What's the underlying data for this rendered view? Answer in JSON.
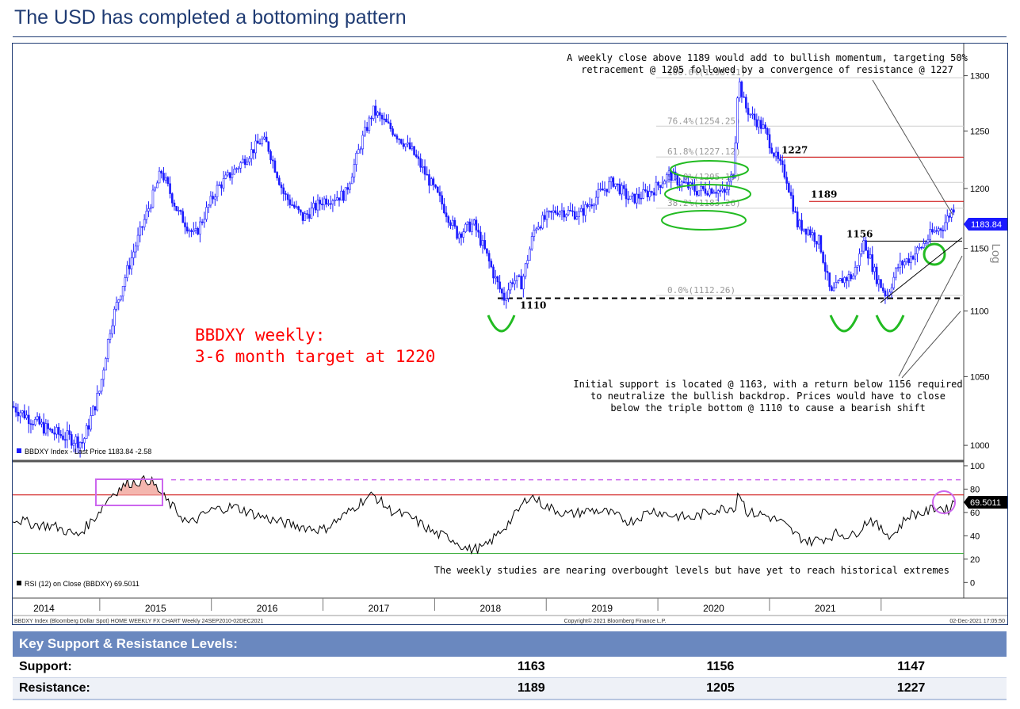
{
  "title": "The USD has completed a bottoming pattern",
  "colors": {
    "title": "#1f3b73",
    "candle": "#1a1aff",
    "resistance": "#cc0000",
    "target_text": "#ff0000",
    "ellipse": "#22bb22",
    "rsi_box": "#cc66ee",
    "table_header": "#6a88bf"
  },
  "chart_data": [
    {
      "type": "candlestick",
      "ylim": [
        990,
        1330
      ],
      "y_scale": "log",
      "axis_side_label": "Log",
      "y_ticks": [
        "1000",
        "1050",
        "1100",
        "1150",
        "1200",
        "1250",
        "1300"
      ],
      "x_labels": [
        "2014",
        "2015",
        "2016",
        "2017",
        "2018",
        "2019",
        "2020",
        "2021"
      ],
      "legend": "BBDXY Index - Last Price 1183.84  -2.58",
      "last_price": "1183.84",
      "path": [
        [
          2013.72,
          1028
        ],
        [
          2013.9,
          1018
        ],
        [
          2014.05,
          1010
        ],
        [
          2014.35,
          1002
        ],
        [
          2014.5,
          1040
        ],
        [
          2014.6,
          1090
        ],
        [
          2014.72,
          1125
        ],
        [
          2014.85,
          1160
        ],
        [
          2015.0,
          1200
        ],
        [
          2015.05,
          1215
        ],
        [
          2015.2,
          1180
        ],
        [
          2015.35,
          1160
        ],
        [
          2015.55,
          1200
        ],
        [
          2015.75,
          1220
        ],
        [
          2015.95,
          1242
        ],
        [
          2016.0,
          1238
        ],
        [
          2016.15,
          1195
        ],
        [
          2016.32,
          1175
        ],
        [
          2016.5,
          1190
        ],
        [
          2016.7,
          1195
        ],
        [
          2016.85,
          1242
        ],
        [
          2016.95,
          1268
        ],
        [
          2017.05,
          1258
        ],
        [
          2017.3,
          1232
        ],
        [
          2017.55,
          1190
        ],
        [
          2017.7,
          1162
        ],
        [
          2017.85,
          1170
        ],
        [
          2017.95,
          1148
        ],
        [
          2018.05,
          1124
        ],
        [
          2018.12,
          1110
        ],
        [
          2018.2,
          1125
        ],
        [
          2018.28,
          1122
        ],
        [
          2018.4,
          1168
        ],
        [
          2018.6,
          1182
        ],
        [
          2018.8,
          1178
        ],
        [
          2019.0,
          1198
        ],
        [
          2019.1,
          1206
        ],
        [
          2019.25,
          1190
        ],
        [
          2019.45,
          1198
        ],
        [
          2019.6,
          1212
        ],
        [
          2019.7,
          1205
        ],
        [
          2019.85,
          1198
        ],
        [
          2020.0,
          1200
        ],
        [
          2020.1,
          1195
        ],
        [
          2020.18,
          1215
        ],
        [
          2020.22,
          1298
        ],
        [
          2020.28,
          1272
        ],
        [
          2020.35,
          1262
        ],
        [
          2020.45,
          1252
        ],
        [
          2020.55,
          1228
        ],
        [
          2020.65,
          1210
        ],
        [
          2020.75,
          1170
        ],
        [
          2020.85,
          1165
        ],
        [
          2020.95,
          1155
        ],
        [
          2021.05,
          1112
        ],
        [
          2021.15,
          1125
        ],
        [
          2021.25,
          1128
        ],
        [
          2021.35,
          1156
        ],
        [
          2021.45,
          1128
        ],
        [
          2021.55,
          1112
        ],
        [
          2021.65,
          1135
        ],
        [
          2021.75,
          1142
        ],
        [
          2021.85,
          1150
        ],
        [
          2021.95,
          1162
        ],
        [
          2022.05,
          1168
        ],
        [
          2022.15,
          1184
        ]
      ],
      "fib_levels": [
        {
          "label": "100.0%(1298.11)",
          "value": 1298.11
        },
        {
          "label": "76.4%(1254.25)",
          "value": 1254.25
        },
        {
          "label": "61.8%(1227.12)",
          "value": 1227.12
        },
        {
          "label": "50.0%(1205.19)",
          "value": 1205.19
        },
        {
          "label": "38.2%(1183.26)",
          "value": 1183.26
        },
        {
          "label": "0.0%(1112.26)",
          "value": 1112.26
        }
      ],
      "levels": [
        {
          "label": "1227",
          "value": 1227,
          "style": "resistance"
        },
        {
          "label": "1189",
          "value": 1189,
          "style": "resistance"
        },
        {
          "label": "1156",
          "value": 1156,
          "style": "support"
        },
        {
          "label": "1110",
          "value": 1110,
          "style": "triple-bottom"
        }
      ],
      "annotations": {
        "top_note": [
          "A weekly close above 1189 would add to bullish momentum, targeting 50%",
          "retracement @ 1205 followed by a convergence of resistance @ 1227"
        ],
        "target": [
          "BBDXY weekly:",
          "3-6 month target at 1220"
        ],
        "support_note": [
          "Initial support is located @ 1163, with a return below 1156 required",
          "to neutralize the bullish backdrop. Prices would have to close",
          "below the triple bottom @ 1110 to cause a bearish shift"
        ]
      }
    },
    {
      "type": "line",
      "name": "RSI (12)",
      "ylim": [
        -12,
        102
      ],
      "y_ticks": [
        "0",
        "20",
        "40",
        "60",
        "80",
        "100"
      ],
      "reference_lines": [
        25,
        75,
        88
      ],
      "legend": "RSI (12)  on Close (BBDXY) 69.5011",
      "last_value": "69.5011",
      "note": "The weekly studies are nearing overbought levels but have yet to reach historical extremes",
      "path": [
        [
          2013.72,
          55
        ],
        [
          2013.9,
          50
        ],
        [
          2014.1,
          48
        ],
        [
          2014.3,
          40
        ],
        [
          2014.45,
          55
        ],
        [
          2014.6,
          75
        ],
        [
          2014.75,
          85
        ],
        [
          2014.95,
          88
        ],
        [
          2015.1,
          70
        ],
        [
          2015.3,
          50
        ],
        [
          2015.5,
          62
        ],
        [
          2015.7,
          65
        ],
        [
          2015.9,
          58
        ],
        [
          2016.1,
          52
        ],
        [
          2016.3,
          48
        ],
        [
          2016.5,
          45
        ],
        [
          2016.7,
          58
        ],
        [
          2016.85,
          70
        ],
        [
          2016.95,
          75
        ],
        [
          2017.1,
          62
        ],
        [
          2017.3,
          55
        ],
        [
          2017.5,
          42
        ],
        [
          2017.65,
          38
        ],
        [
          2017.8,
          28
        ],
        [
          2017.95,
          30
        ],
        [
          2018.1,
          45
        ],
        [
          2018.2,
          55
        ],
        [
          2018.35,
          75
        ],
        [
          2018.5,
          65
        ],
        [
          2018.7,
          58
        ],
        [
          2018.9,
          62
        ],
        [
          2019.05,
          60
        ],
        [
          2019.25,
          52
        ],
        [
          2019.45,
          62
        ],
        [
          2019.6,
          58
        ],
        [
          2019.8,
          55
        ],
        [
          2020.0,
          62
        ],
        [
          2020.2,
          65
        ],
        [
          2020.22,
          80
        ],
        [
          2020.3,
          60
        ],
        [
          2020.45,
          58
        ],
        [
          2020.6,
          52
        ],
        [
          2020.75,
          40
        ],
        [
          2020.85,
          35
        ],
        [
          2021.0,
          38
        ],
        [
          2021.1,
          42
        ],
        [
          2021.25,
          40
        ],
        [
          2021.4,
          55
        ],
        [
          2021.5,
          45
        ],
        [
          2021.6,
          40
        ],
        [
          2021.75,
          58
        ],
        [
          2021.9,
          60
        ],
        [
          2022.0,
          65
        ],
        [
          2022.1,
          62
        ],
        [
          2022.15,
          69.5
        ]
      ]
    }
  ],
  "footer": {
    "left": "BBDXY Index (Bloomberg Dollar Spot) HOME WEEKLY FX CHART  Weekly 24SEP2010-02DEC2021",
    "center": "Copyright© 2021 Bloomberg Finance L.P.",
    "right": "02-Dec-2021 17:05:50"
  },
  "table": {
    "title": "Key Support & Resistance Levels:",
    "rows": [
      {
        "label": "Support:",
        "values": [
          "1163",
          "1156",
          "1147"
        ]
      },
      {
        "label": "Resistance:",
        "values": [
          "1189",
          "1205",
          "1227"
        ]
      }
    ]
  }
}
